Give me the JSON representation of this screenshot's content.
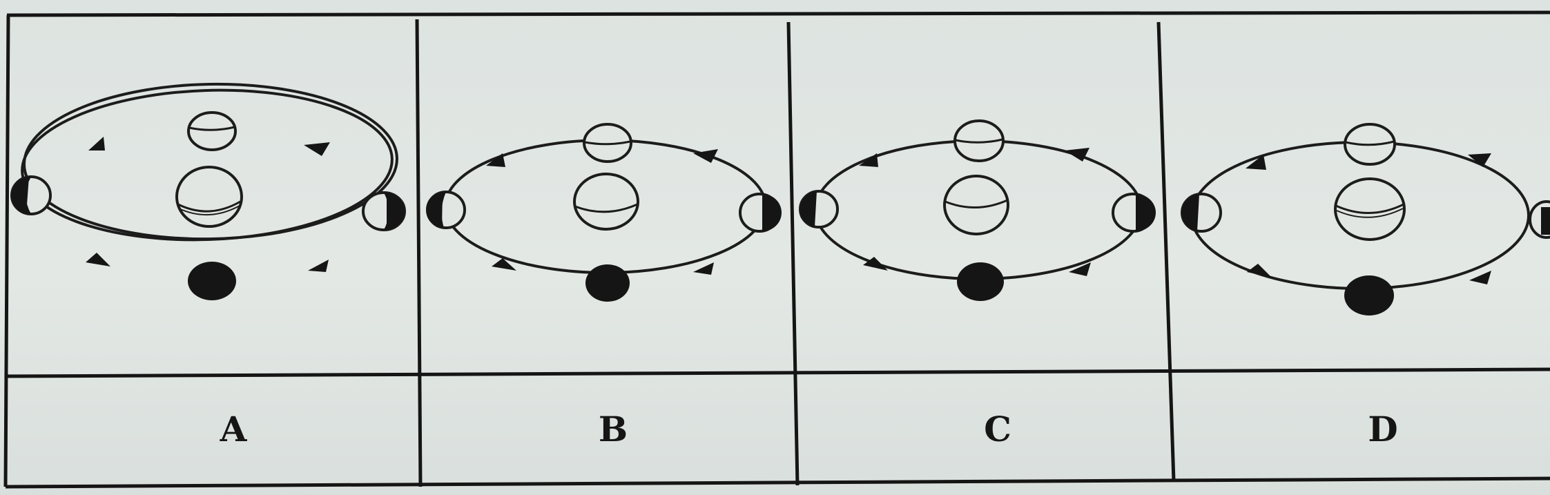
{
  "options": [
    {
      "label": "A"
    },
    {
      "label": "B"
    },
    {
      "label": "C"
    },
    {
      "label": "D"
    }
  ],
  "colors": {
    "ink": "#1a1a1a",
    "paper": "#e1e6e3"
  },
  "icons": [
    "moon-phase-icon",
    "earth-icon",
    "orbit-direction-arrow-icon"
  ]
}
